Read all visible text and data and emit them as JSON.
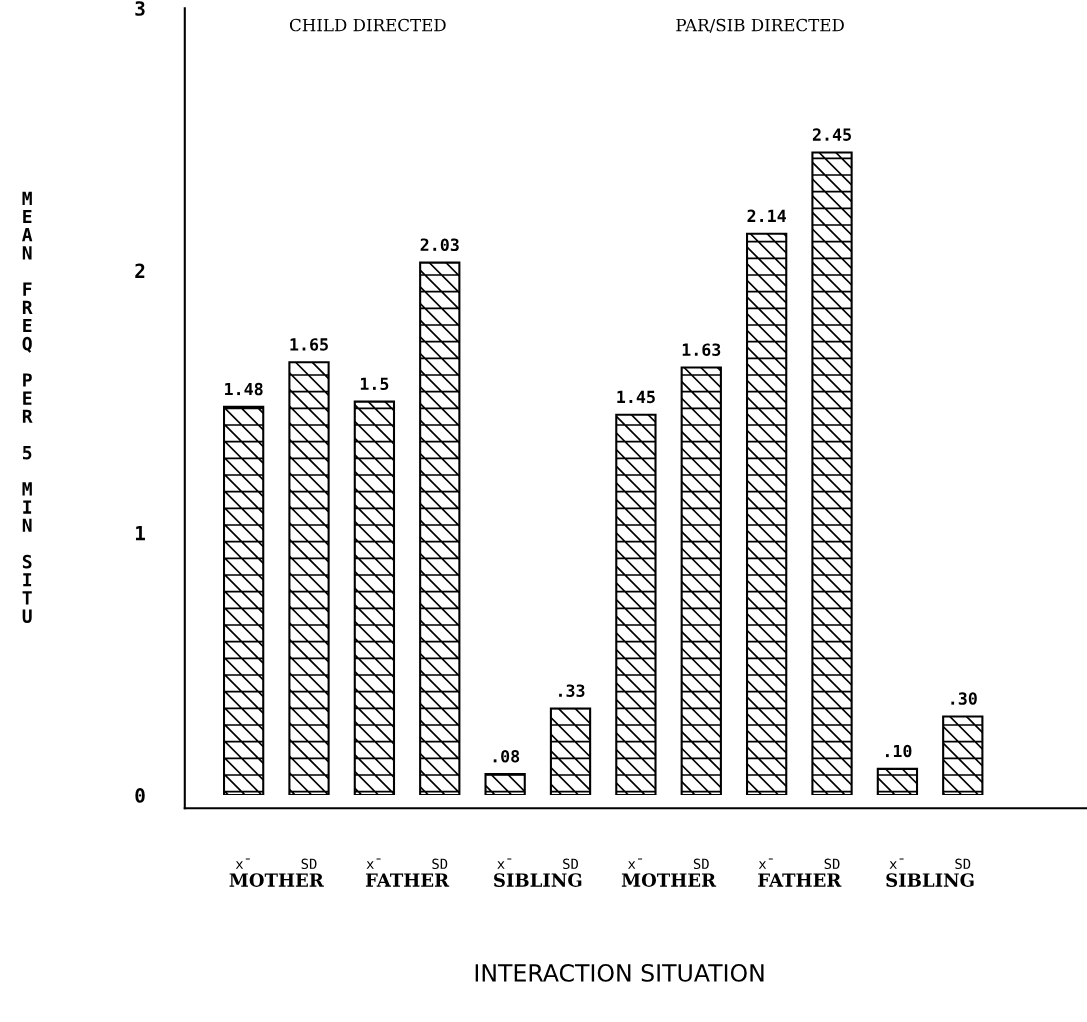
{
  "chart_data": {
    "type": "bar",
    "categories": [
      "x̄",
      "SD",
      "x̄",
      "SD",
      "x̄",
      "SD",
      "x̄",
      "SD",
      "x̄",
      "SD",
      "x̄",
      "SD"
    ],
    "values": [
      1.48,
      1.65,
      1.5,
      2.03,
      0.08,
      0.33,
      1.45,
      1.63,
      2.14,
      2.45,
      0.1,
      0.3
    ],
    "value_labels": [
      "1.48",
      "1.65",
      "1.5",
      "2.03",
      ".08",
      ".33",
      "1.45",
      "1.63",
      "2.14",
      "2.45",
      ".10",
      ".30"
    ],
    "color": "#000000",
    "ylim": [
      0,
      3
    ],
    "yticks": [
      0,
      1,
      2,
      3
    ],
    "ylabel": "MEAN FREQ PER 5 MIN SITU",
    "xlabel": "INTERACTION SITUATION",
    "annotations": [
      "CHILD DIRECTED",
      "PAR/SIB DIRECTED",
      "MOTHER",
      "FATHER",
      "SIBLING",
      "MOTHER",
      "FATHER",
      "SIBLING"
    ],
    "grid": false
  }
}
